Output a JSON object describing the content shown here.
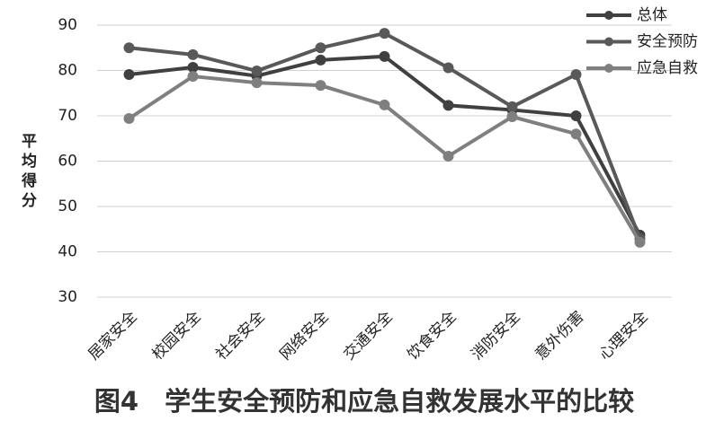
{
  "chart_data": {
    "type": "line",
    "title": "图4　学生安全预防和应急自救发展水平的比较",
    "y_label": "平均得分",
    "categories": [
      "居家安全",
      "校园安全",
      "社会安全",
      "网络安全",
      "交通安全",
      "饮食安全",
      "消防安全",
      "意外伤害",
      "心理安全"
    ],
    "series": [
      {
        "name": "总体",
        "color": "#404040",
        "values": [
          79.1,
          80.7,
          78.8,
          82.3,
          83.1,
          72.3,
          71.3,
          70.0,
          43.7
        ]
      },
      {
        "name": "安全预防",
        "color": "#595959",
        "values": [
          85.0,
          83.5,
          79.9,
          85.0,
          88.2,
          80.6,
          72.0,
          79.1,
          42.9
        ]
      },
      {
        "name": "应急自救",
        "color": "#7f7f7f",
        "values": [
          69.4,
          78.7,
          77.3,
          76.7,
          72.4,
          61.1,
          69.8,
          66.0,
          42.1
        ]
      }
    ],
    "ylim": [
      30,
      90
    ],
    "yticks": [
      30,
      40,
      50,
      60,
      70,
      80,
      90
    ],
    "grid": true,
    "legend": "top-right"
  }
}
